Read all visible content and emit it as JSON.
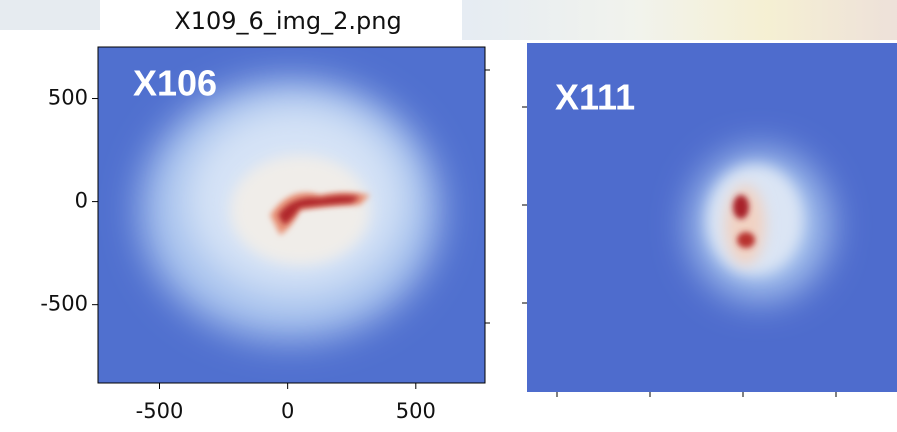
{
  "chart_data": [
    {
      "type": "heatmap",
      "title": "X109_6_img_2.png",
      "annotation": "X106",
      "xlim": [
        -740,
        770
      ],
      "ylim": [
        -880,
        750
      ],
      "xticks": [
        -500,
        0,
        500
      ],
      "yticks": [
        -500,
        0,
        500
      ]
    },
    {
      "type": "heatmap",
      "annotation": "X111"
    }
  ]
}
